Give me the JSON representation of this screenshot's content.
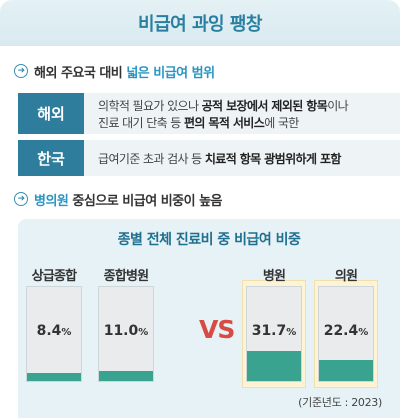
{
  "header": {
    "title": "비급여 과잉 팽창"
  },
  "section1": {
    "heading_prefix": "해외 주요국 대비 ",
    "heading_highlight": "넓은 비급여 범위"
  },
  "rows": [
    {
      "label": "해외",
      "line1_pre": "의학적 필요가 있으나 ",
      "line1_bold": "공적 보장에서 제외된 항목",
      "line1_post": "이나",
      "line2_pre": "진료 대기 단축 등 ",
      "line2_bold": "편의 목적 서비스",
      "line2_post": "에 국한"
    },
    {
      "label": "한국",
      "line1_pre": "급여기준 초과 검사 등 ",
      "line1_bold": "치료적 항목 광범위하게 포함",
      "line1_post": ""
    }
  ],
  "section2": {
    "heading_highlight": "병의원",
    "heading_suffix": " 중심으로 비급여 비중이 높음"
  },
  "chart_title": "종별 전체 진료비 중 비급여 비중",
  "vs_label": "VS",
  "base_year": "(기준년도 : 2023)",
  "chart_data": {
    "type": "bar",
    "title": "종별 전체 진료비 중 비급여 비중",
    "categories": [
      "상급종합",
      "종합병원",
      "병원",
      "의원"
    ],
    "values": [
      8.4,
      11.0,
      31.7,
      22.4
    ],
    "value_labels": [
      "8.4",
      "11.0",
      "31.7",
      "22.4"
    ],
    "unit": "%",
    "ylim": [
      0,
      100
    ],
    "highlighted": [
      "병원",
      "의원"
    ],
    "bar_color": "#3aa38f",
    "highlight_color": "#fff3d6"
  },
  "colors": {
    "accent": "#2a7fa1",
    "label_bg": "#2e7d9c",
    "vs": "#d84a44"
  }
}
